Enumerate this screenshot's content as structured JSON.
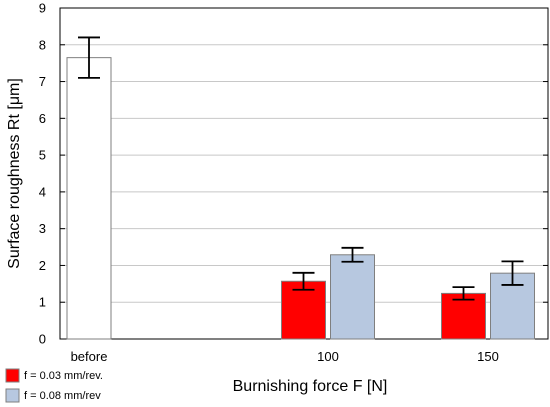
{
  "chart_data": {
    "type": "bar",
    "xlabel": "Burnishing force F [N]",
    "ylabel": "Surface roughness Rt [μm]",
    "ylim": [
      0,
      9
    ],
    "yticks": [
      0,
      1,
      2,
      3,
      4,
      5,
      6,
      7,
      8,
      9
    ],
    "grid": "horizontal",
    "legend_position": "bottom-left",
    "categories": [
      "before",
      "100",
      "150"
    ],
    "reference": {
      "category": "before",
      "value": 7.65,
      "error": 0.55,
      "color": "#ffffff"
    },
    "series": [
      {
        "name": "f = 0.03 mm/rev.",
        "color": "#ff0000",
        "values": [
          null,
          1.57,
          1.24
        ],
        "errors": [
          null,
          0.23,
          0.17
        ]
      },
      {
        "name": "f = 0.08 mm/rev",
        "color": "#b7c8e0",
        "values": [
          null,
          2.29,
          1.79
        ],
        "errors": [
          null,
          0.19,
          0.32
        ]
      }
    ]
  }
}
